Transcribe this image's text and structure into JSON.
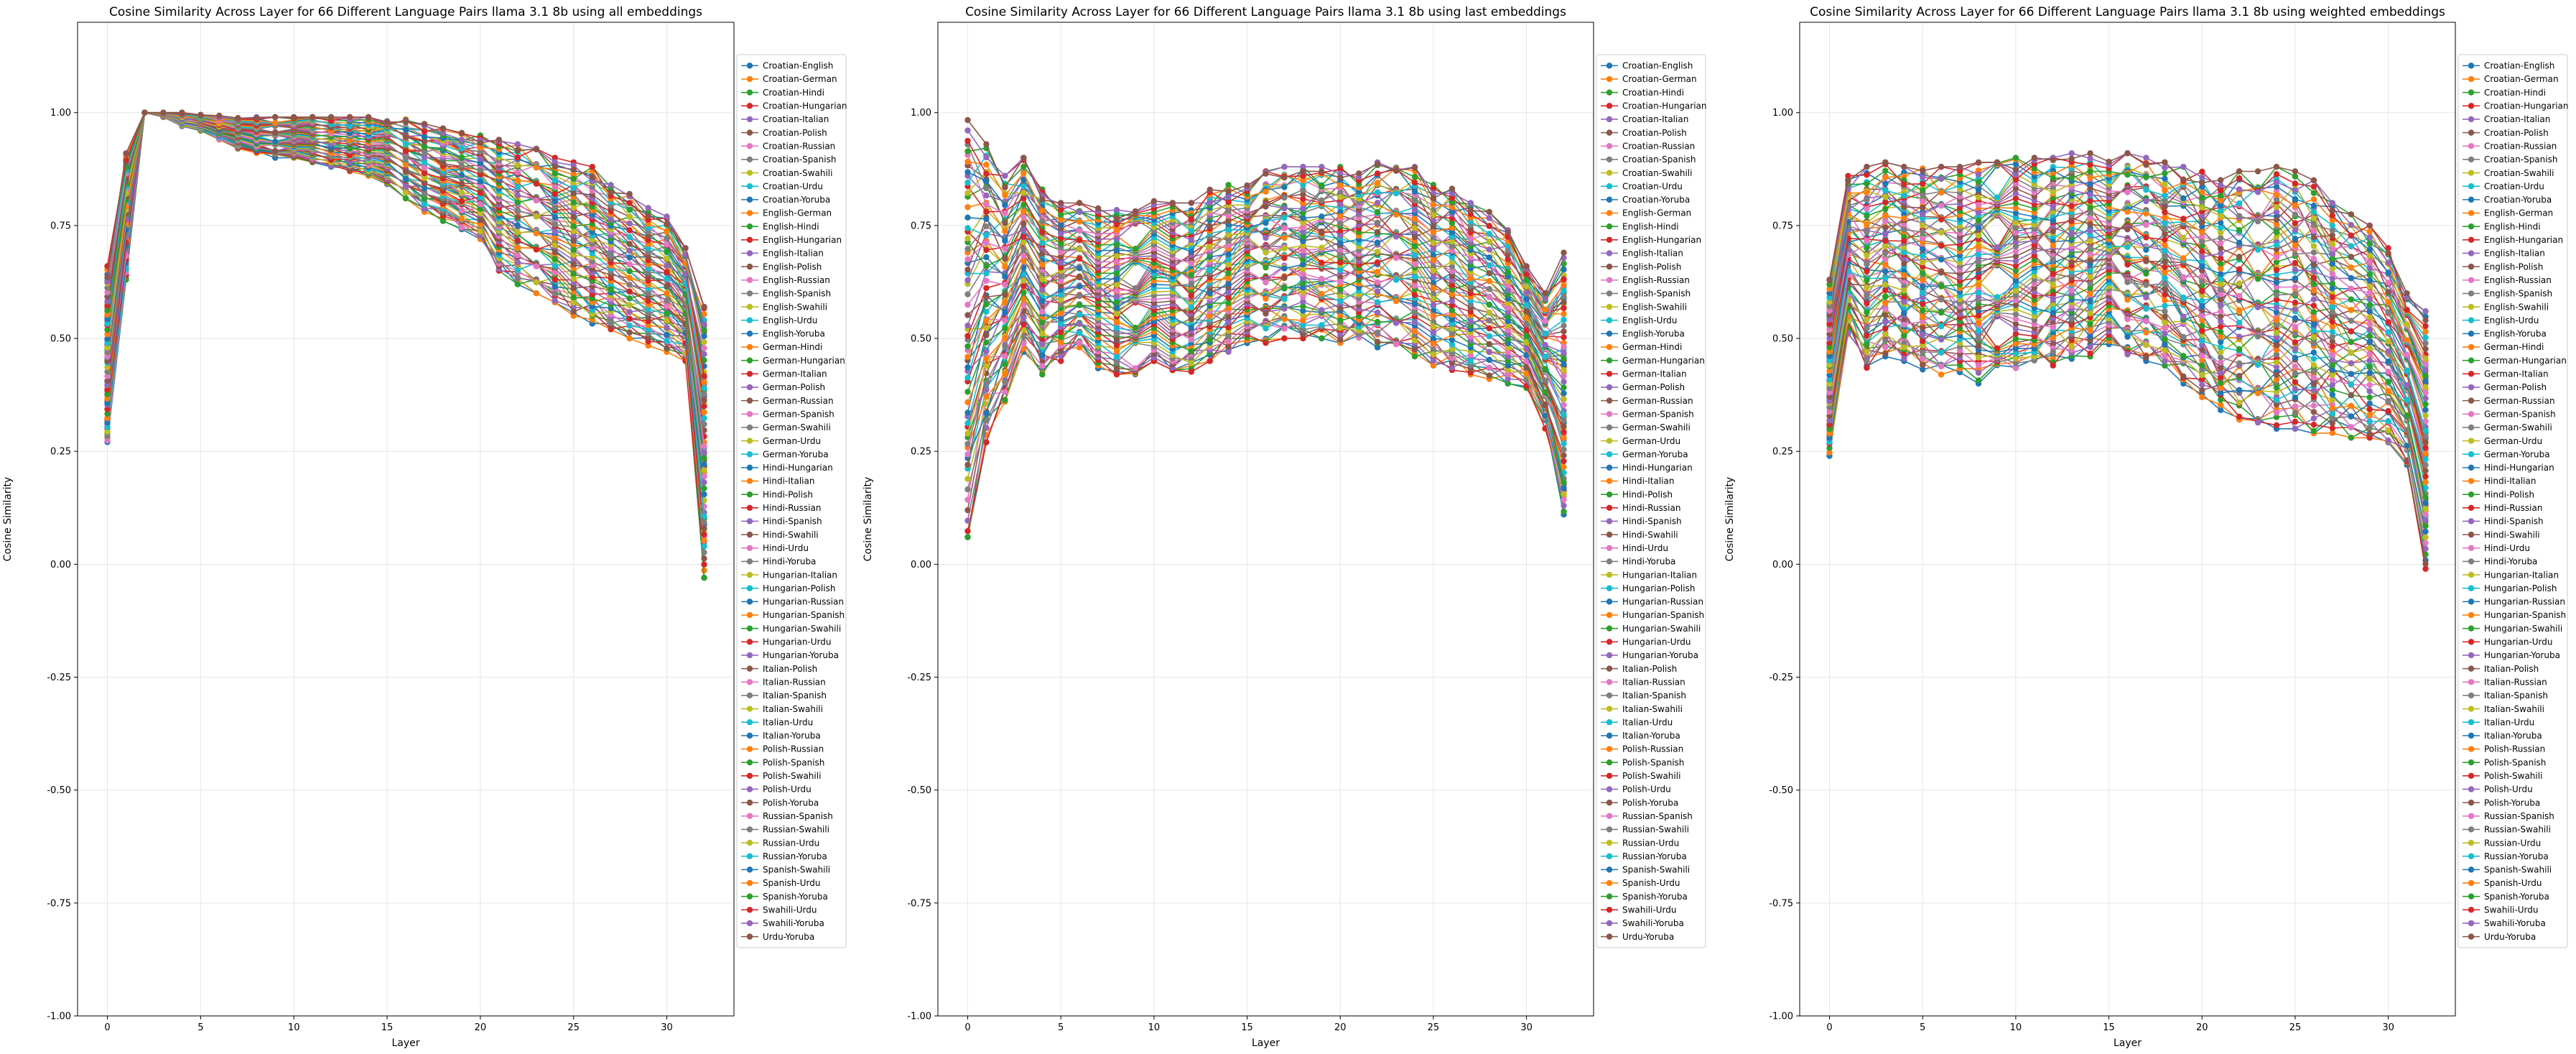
{
  "chart_data": [
    {
      "type": "line",
      "title": "Cosine Similarity Across Layer for 66 Different Language Pairs llama 3.1 8b using all embeddings",
      "xlabel": "Layer",
      "ylabel": "Cosine Similarity",
      "xlim": [
        -1.6,
        33.6
      ],
      "ylim": [
        -1.0,
        1.2
      ],
      "xticks": [
        0,
        5,
        10,
        15,
        20,
        25,
        30
      ],
      "yticks": [
        -1.0,
        -0.75,
        -0.5,
        -0.25,
        0.0,
        0.25,
        0.5,
        0.75,
        1.0
      ],
      "grid": true,
      "legend": "right-outside",
      "x": [
        0,
        1,
        2,
        3,
        4,
        5,
        6,
        7,
        8,
        9,
        10,
        11,
        12,
        13,
        14,
        15,
        16,
        17,
        18,
        19,
        20,
        21,
        22,
        23,
        24,
        25,
        26,
        27,
        28,
        29,
        30,
        31,
        32
      ],
      "envelope": {
        "upper": [
          0.66,
          0.91,
          1.0,
          1.0,
          1.0,
          0.995,
          0.993,
          0.99,
          0.99,
          0.99,
          0.99,
          0.99,
          0.99,
          0.99,
          0.99,
          0.99,
          0.985,
          0.975,
          0.965,
          0.955,
          0.95,
          0.94,
          0.93,
          0.92,
          0.9,
          0.89,
          0.88,
          0.84,
          0.82,
          0.79,
          0.77,
          0.7,
          0.57
        ],
        "lower": [
          0.26,
          0.63,
          1.0,
          0.99,
          0.97,
          0.96,
          0.94,
          0.92,
          0.91,
          0.9,
          0.9,
          0.89,
          0.88,
          0.87,
          0.86,
          0.84,
          0.81,
          0.78,
          0.76,
          0.74,
          0.72,
          0.65,
          0.62,
          0.6,
          0.58,
          0.55,
          0.53,
          0.52,
          0.5,
          0.48,
          0.47,
          0.45,
          -0.03
        ]
      }
    },
    {
      "type": "line",
      "title": "Cosine Similarity Across Layer for 66 Different Language Pairs llama 3.1 8b using last embeddings",
      "xlabel": "Layer",
      "ylabel": "Cosine Similarity",
      "xlim": [
        -1.6,
        33.6
      ],
      "ylim": [
        -1.0,
        1.2
      ],
      "xticks": [
        0,
        5,
        10,
        15,
        20,
        25,
        30
      ],
      "yticks": [
        -1.0,
        -0.75,
        -0.5,
        -0.25,
        0.0,
        0.25,
        0.5,
        0.75,
        1.0
      ],
      "grid": true,
      "legend": "right-outside",
      "x": [
        0,
        1,
        2,
        3,
        4,
        5,
        6,
        7,
        8,
        9,
        10,
        11,
        12,
        13,
        14,
        15,
        16,
        17,
        18,
        19,
        20,
        21,
        22,
        23,
        24,
        25,
        26,
        27,
        28,
        29,
        30,
        31,
        32
      ],
      "envelope": {
        "upper": [
          0.99,
          0.93,
          0.86,
          0.9,
          0.83,
          0.8,
          0.8,
          0.79,
          0.79,
          0.8,
          0.81,
          0.8,
          0.8,
          0.83,
          0.84,
          0.86,
          0.87,
          0.88,
          0.88,
          0.88,
          0.88,
          0.87,
          0.89,
          0.89,
          0.88,
          0.84,
          0.84,
          0.8,
          0.78,
          0.74,
          0.66,
          0.6,
          0.69
        ],
        "lower": [
          0.06,
          0.27,
          0.36,
          0.47,
          0.42,
          0.45,
          0.48,
          0.43,
          0.42,
          0.42,
          0.45,
          0.43,
          0.42,
          0.45,
          0.47,
          0.48,
          0.49,
          0.5,
          0.5,
          0.5,
          0.49,
          0.49,
          0.48,
          0.47,
          0.46,
          0.44,
          0.43,
          0.42,
          0.41,
          0.4,
          0.39,
          0.3,
          0.11
        ]
      }
    },
    {
      "type": "line",
      "title": "Cosine Similarity Across Layer for 66 Different Language Pairs llama 3.1 8b using weighted embeddings",
      "xlabel": "Layer",
      "ylabel": "Cosine Similarity",
      "xlim": [
        -1.6,
        33.6
      ],
      "ylim": [
        -1.0,
        1.2
      ],
      "xticks": [
        0,
        5,
        10,
        15,
        20,
        25,
        30
      ],
      "yticks": [
        -1.0,
        -0.75,
        -0.5,
        -0.25,
        0.0,
        0.25,
        0.5,
        0.75,
        1.0
      ],
      "grid": true,
      "legend": "right-outside",
      "x": [
        0,
        1,
        2,
        3,
        4,
        5,
        6,
        7,
        8,
        9,
        10,
        11,
        12,
        13,
        14,
        15,
        16,
        17,
        18,
        19,
        20,
        21,
        22,
        23,
        24,
        25,
        26,
        27,
        28,
        29,
        30,
        31,
        32
      ],
      "envelope": {
        "upper": [
          0.63,
          0.86,
          0.88,
          0.89,
          0.88,
          0.88,
          0.88,
          0.88,
          0.89,
          0.89,
          0.9,
          0.9,
          0.9,
          0.91,
          0.91,
          0.91,
          0.91,
          0.9,
          0.89,
          0.88,
          0.87,
          0.87,
          0.87,
          0.87,
          0.88,
          0.87,
          0.85,
          0.8,
          0.78,
          0.75,
          0.7,
          0.6,
          0.56
        ],
        "lower": [
          0.24,
          0.51,
          0.43,
          0.46,
          0.45,
          0.43,
          0.42,
          0.41,
          0.4,
          0.41,
          0.42,
          0.43,
          0.44,
          0.45,
          0.46,
          0.47,
          0.46,
          0.45,
          0.44,
          0.4,
          0.37,
          0.33,
          0.32,
          0.31,
          0.3,
          0.3,
          0.29,
          0.29,
          0.28,
          0.28,
          0.27,
          0.22,
          -0.01
        ]
      }
    }
  ],
  "legend_labels": [
    "Croatian-English",
    "Croatian-German",
    "Croatian-Hindi",
    "Croatian-Hungarian",
    "Croatian-Italian",
    "Croatian-Polish",
    "Croatian-Russian",
    "Croatian-Spanish",
    "Croatian-Swahili",
    "Croatian-Urdu",
    "Croatian-Yoruba",
    "English-German",
    "English-Hindi",
    "English-Hungarian",
    "English-Italian",
    "English-Polish",
    "English-Russian",
    "English-Spanish",
    "English-Swahili",
    "English-Urdu",
    "English-Yoruba",
    "German-Hindi",
    "German-Hungarian",
    "German-Italian",
    "German-Polish",
    "German-Russian",
    "German-Spanish",
    "German-Swahili",
    "German-Urdu",
    "German-Yoruba",
    "Hindi-Hungarian",
    "Hindi-Italian",
    "Hindi-Polish",
    "Hindi-Russian",
    "Hindi-Spanish",
    "Hindi-Swahili",
    "Hindi-Urdu",
    "Hindi-Yoruba",
    "Hungarian-Italian",
    "Hungarian-Polish",
    "Hungarian-Russian",
    "Hungarian-Spanish",
    "Hungarian-Swahili",
    "Hungarian-Urdu",
    "Hungarian-Yoruba",
    "Italian-Polish",
    "Italian-Russian",
    "Italian-Spanish",
    "Italian-Swahili",
    "Italian-Urdu",
    "Italian-Yoruba",
    "Polish-Russian",
    "Polish-Spanish",
    "Polish-Swahili",
    "Polish-Urdu",
    "Polish-Yoruba",
    "Russian-Spanish",
    "Russian-Swahili",
    "Russian-Urdu",
    "Russian-Yoruba",
    "Spanish-Swahili",
    "Spanish-Urdu",
    "Spanish-Yoruba",
    "Swahili-Urdu",
    "Swahili-Yoruba",
    "Urdu-Yoruba"
  ],
  "colors": [
    "#1f77b4",
    "#ff7f0e",
    "#2ca02c",
    "#d62728",
    "#9467bd",
    "#8c564b",
    "#e377c2",
    "#7f7f7f",
    "#bcbd22",
    "#17becf"
  ]
}
